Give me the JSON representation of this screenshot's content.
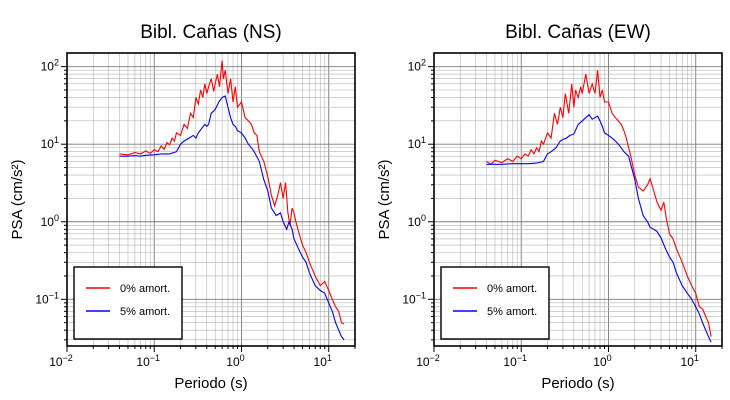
{
  "chart_data": [
    {
      "type": "line",
      "title": "Bibl. Cañas (NS)",
      "xlabel": "Periodo (s)",
      "ylabel": "PSA (cm/s²)",
      "xscale": "log",
      "yscale": "log",
      "xlim": [
        0.01,
        20
      ],
      "ylim": [
        0.025,
        150
      ],
      "grid": true,
      "legend_position": "bottom-left",
      "x_ticks": [
        {
          "base": "10",
          "exp": "−2"
        },
        {
          "base": "10",
          "exp": "−1"
        },
        {
          "base": "10",
          "exp": "0"
        },
        {
          "base": "10",
          "exp": "1"
        }
      ],
      "y_ticks": [
        {
          "base": "10",
          "exp": "−1"
        },
        {
          "base": "10",
          "exp": "0"
        },
        {
          "base": "10",
          "exp": "1"
        },
        {
          "base": "10",
          "exp": "2"
        }
      ],
      "series": [
        {
          "name": "0% amort.",
          "color": "#ff0000",
          "x": [
            0.04,
            0.05,
            0.06,
            0.07,
            0.08,
            0.09,
            0.1,
            0.11,
            0.12,
            0.13,
            0.14,
            0.15,
            0.16,
            0.17,
            0.18,
            0.2,
            0.22,
            0.24,
            0.26,
            0.28,
            0.3,
            0.32,
            0.34,
            0.36,
            0.38,
            0.4,
            0.42,
            0.45,
            0.48,
            0.5,
            0.53,
            0.56,
            0.6,
            0.62,
            0.65,
            0.7,
            0.75,
            0.8,
            0.85,
            0.9,
            1.0,
            1.1,
            1.2,
            1.3,
            1.4,
            1.5,
            1.6,
            1.8,
            2.0,
            2.2,
            2.4,
            2.6,
            2.8,
            3.0,
            3.2,
            3.4,
            3.6,
            3.8,
            4.0,
            4.2,
            4.5,
            5.0,
            5.5,
            6.0,
            7.0,
            8.0,
            9.0,
            10.0,
            11.0,
            12.0,
            13.0,
            14.0,
            15.0
          ],
          "y": [
            7.5,
            7.3,
            7.8,
            7.5,
            8.2,
            7.6,
            8.5,
            8.0,
            9.5,
            8.6,
            10.5,
            9.8,
            12.0,
            11.0,
            14.0,
            13.0,
            18.0,
            16.0,
            25.0,
            22.0,
            40.0,
            33.0,
            50.0,
            40.0,
            60.0,
            45.0,
            55.0,
            70.0,
            48.0,
            60.0,
            80.0,
            55.0,
            120.0,
            70.0,
            90.0,
            45.0,
            70.0,
            35.0,
            55.0,
            30.0,
            35.0,
            22.0,
            20.0,
            18.0,
            14.0,
            13.0,
            8.0,
            6.0,
            3.8,
            2.2,
            1.6,
            2.2,
            3.2,
            2.0,
            3.2,
            1.3,
            0.9,
            1.5,
            1.3,
            1.0,
            0.75,
            0.5,
            0.4,
            0.3,
            0.2,
            0.15,
            0.17,
            0.13,
            0.1,
            0.08,
            0.07,
            0.05,
            0.048
          ]
        },
        {
          "name": "5% amort.",
          "color": "#0000ff",
          "x": [
            0.04,
            0.05,
            0.06,
            0.07,
            0.08,
            0.1,
            0.12,
            0.15,
            0.18,
            0.2,
            0.22,
            0.25,
            0.28,
            0.3,
            0.32,
            0.35,
            0.38,
            0.4,
            0.42,
            0.45,
            0.5,
            0.55,
            0.6,
            0.65,
            0.7,
            0.75,
            0.8,
            0.85,
            0.9,
            1.0,
            1.1,
            1.2,
            1.3,
            1.4,
            1.6,
            1.8,
            2.0,
            2.2,
            2.5,
            2.8,
            3.0,
            3.3,
            3.5,
            3.8,
            4.0,
            4.5,
            5.0,
            5.5,
            6.0,
            7.0,
            8.0,
            9.0,
            10.0,
            11.0,
            12.0,
            13.0,
            14.0,
            15.0
          ],
          "y": [
            7.0,
            7.0,
            7.1,
            7.0,
            7.2,
            7.3,
            7.5,
            7.5,
            8.0,
            10.0,
            11.0,
            12.0,
            13.0,
            12.0,
            14.0,
            16.0,
            18.0,
            17.0,
            18.0,
            25.0,
            28.0,
            35.0,
            40.0,
            42.0,
            30.0,
            22.0,
            18.0,
            17.0,
            15.0,
            14.0,
            12.0,
            10.0,
            9.0,
            8.0,
            6.0,
            3.5,
            2.5,
            1.5,
            1.2,
            1.3,
            1.0,
            0.8,
            1.0,
            0.8,
            0.6,
            0.45,
            0.35,
            0.3,
            0.22,
            0.15,
            0.13,
            0.12,
            0.09,
            0.07,
            0.05,
            0.04,
            0.033,
            0.03
          ]
        }
      ]
    },
    {
      "type": "line",
      "title": "Bibl. Cañas (EW)",
      "xlabel": "Periodo (s)",
      "ylabel": "PSA (cm/s²)",
      "xscale": "log",
      "yscale": "log",
      "xlim": [
        0.01,
        20
      ],
      "ylim": [
        0.025,
        150
      ],
      "grid": true,
      "legend_position": "bottom-left",
      "x_ticks": [
        {
          "base": "10",
          "exp": "−2"
        },
        {
          "base": "10",
          "exp": "−1"
        },
        {
          "base": "10",
          "exp": "0"
        },
        {
          "base": "10",
          "exp": "1"
        }
      ],
      "y_ticks": [
        {
          "base": "10",
          "exp": "−1"
        },
        {
          "base": "10",
          "exp": "0"
        },
        {
          "base": "10",
          "exp": "1"
        },
        {
          "base": "10",
          "exp": "2"
        }
      ],
      "series": [
        {
          "name": "0% amort.",
          "color": "#ff0000",
          "x": [
            0.04,
            0.045,
            0.05,
            0.06,
            0.07,
            0.08,
            0.09,
            0.1,
            0.11,
            0.12,
            0.13,
            0.14,
            0.15,
            0.16,
            0.17,
            0.18,
            0.2,
            0.22,
            0.24,
            0.26,
            0.28,
            0.3,
            0.32,
            0.35,
            0.38,
            0.4,
            0.42,
            0.45,
            0.48,
            0.5,
            0.55,
            0.6,
            0.65,
            0.7,
            0.75,
            0.8,
            0.85,
            0.9,
            1.0,
            1.1,
            1.2,
            1.3,
            1.4,
            1.5,
            1.6,
            1.8,
            2.0,
            2.2,
            2.5,
            2.8,
            3.0,
            3.3,
            3.6,
            4.0,
            4.3,
            4.6,
            5.0,
            5.5,
            6.0,
            7.0,
            8.0,
            9.0,
            10.0,
            11.0,
            12.0,
            13.0,
            14.0,
            15.0
          ],
          "y": [
            6.0,
            5.5,
            6.2,
            5.8,
            6.5,
            6.0,
            7.0,
            6.5,
            7.5,
            7.0,
            8.5,
            7.5,
            9.0,
            8.0,
            11.0,
            10.0,
            14.0,
            12.0,
            25.0,
            18.0,
            30.0,
            22.0,
            45.0,
            25.0,
            60.0,
            30.0,
            50.0,
            40.0,
            55.0,
            45.0,
            80.0,
            45.0,
            60.0,
            45.0,
            90.0,
            40.0,
            50.0,
            35.0,
            35.0,
            25.0,
            22.0,
            20.0,
            18.0,
            15.0,
            12.0,
            7.0,
            4.0,
            2.8,
            2.5,
            3.0,
            3.6,
            2.5,
            1.8,
            1.4,
            1.8,
            1.1,
            0.7,
            0.6,
            0.45,
            0.3,
            0.2,
            0.15,
            0.12,
            0.08,
            0.075,
            0.06,
            0.05,
            0.033
          ]
        },
        {
          "name": "5% amort.",
          "color": "#0000ff",
          "x": [
            0.04,
            0.05,
            0.06,
            0.08,
            0.1,
            0.12,
            0.15,
            0.18,
            0.2,
            0.22,
            0.25,
            0.28,
            0.3,
            0.33,
            0.36,
            0.4,
            0.45,
            0.5,
            0.55,
            0.6,
            0.65,
            0.7,
            0.75,
            0.8,
            0.85,
            0.9,
            1.0,
            1.1,
            1.2,
            1.3,
            1.4,
            1.5,
            1.7,
            2.0,
            2.2,
            2.5,
            2.8,
            3.0,
            3.3,
            3.6,
            4.0,
            4.5,
            5.0,
            5.5,
            6.0,
            7.0,
            8.0,
            9.0,
            10.0,
            11.0,
            12.0,
            13.0,
            14.0,
            15.0
          ],
          "y": [
            5.5,
            5.5,
            5.5,
            5.6,
            5.6,
            5.6,
            5.7,
            6.0,
            7.5,
            8.0,
            9.0,
            11.0,
            11.5,
            12.0,
            13.0,
            13.5,
            18.0,
            20.0,
            22.0,
            24.0,
            21.0,
            22.0,
            23.0,
            20.0,
            17.0,
            14.0,
            13.0,
            12.0,
            11.0,
            10.0,
            9.0,
            8.0,
            7.0,
            3.5,
            2.0,
            1.2,
            1.0,
            0.85,
            0.8,
            0.75,
            0.62,
            0.45,
            0.35,
            0.3,
            0.22,
            0.15,
            0.12,
            0.1,
            0.08,
            0.065,
            0.05,
            0.04,
            0.033,
            0.028
          ]
        }
      ]
    }
  ]
}
